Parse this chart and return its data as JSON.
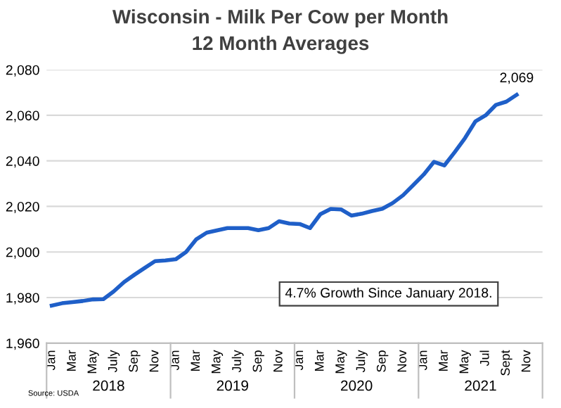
{
  "chart_data": {
    "type": "line",
    "title": "Wisconsin - Milk Per Cow per Month",
    "subtitle": "12 Month Averages",
    "categories": [
      "Jan",
      null,
      "Mar",
      null,
      "May",
      null,
      "July",
      null,
      "Sep",
      null,
      "Nov",
      null,
      "Jan",
      null,
      "Mar",
      null,
      "May",
      null,
      "July",
      null,
      "Sep",
      null,
      "Nov",
      null,
      "Jan",
      null,
      "Mar",
      null,
      "May",
      null,
      "July",
      null,
      "Sep",
      null,
      "Nov",
      null,
      "Jan",
      null,
      "Mar",
      null,
      "May",
      null,
      "Jul",
      null,
      "Sept",
      null,
      "Nov",
      null
    ],
    "series": [
      {
        "color": "#1f5fc8",
        "values": [
          1976.5,
          1977.5,
          1978,
          1978.5,
          1979.2,
          1979.3,
          1982.7,
          1986.8,
          1990,
          1993,
          1996,
          1996.3,
          1996.8,
          2000,
          2005.6,
          2008.5,
          2009.5,
          2010.5,
          2010.5,
          2010.5,
          2009.6,
          2010.5,
          2013.5,
          2012.5,
          2012.3,
          2010.5,
          2016.6,
          2018.9,
          2018.7,
          2016,
          2016.8,
          2018,
          2019,
          2021.5,
          2024.9,
          2029.4,
          2034,
          2039.6,
          2038,
          2043.8,
          2050,
          2057.3,
          2060,
          2064.6,
          2066,
          2069,
          null,
          null
        ],
        "value_labels": [
          null,
          null,
          null,
          null,
          null,
          null,
          null,
          null,
          null,
          null,
          null,
          null,
          null,
          null,
          null,
          null,
          null,
          null,
          null,
          null,
          null,
          null,
          null,
          null,
          null,
          null,
          null,
          null,
          null,
          null,
          null,
          null,
          null,
          null,
          null,
          null,
          null,
          null,
          null,
          null,
          null,
          null,
          null,
          null,
          null,
          "2,069",
          null,
          null
        ]
      }
    ],
    "ylim": [
      1960,
      2080
    ],
    "yticks": [
      {
        "value": 1960,
        "label": "1,960"
      },
      {
        "value": 1980,
        "label": "1,980"
      },
      {
        "value": 2000,
        "label": "2,000"
      },
      {
        "value": 2020,
        "label": "2,020"
      },
      {
        "value": 2040,
        "label": "2,040"
      },
      {
        "value": 2060,
        "label": "2,060"
      },
      {
        "value": 2080,
        "label": "2,080"
      }
    ],
    "grid": "y",
    "legend": false,
    "marker": "none",
    "line_style": "solid",
    "annotations": [
      "2018",
      "2019",
      "2020",
      "2021",
      "4.7% Growth Since January 2018.",
      "Source: USDA"
    ]
  }
}
